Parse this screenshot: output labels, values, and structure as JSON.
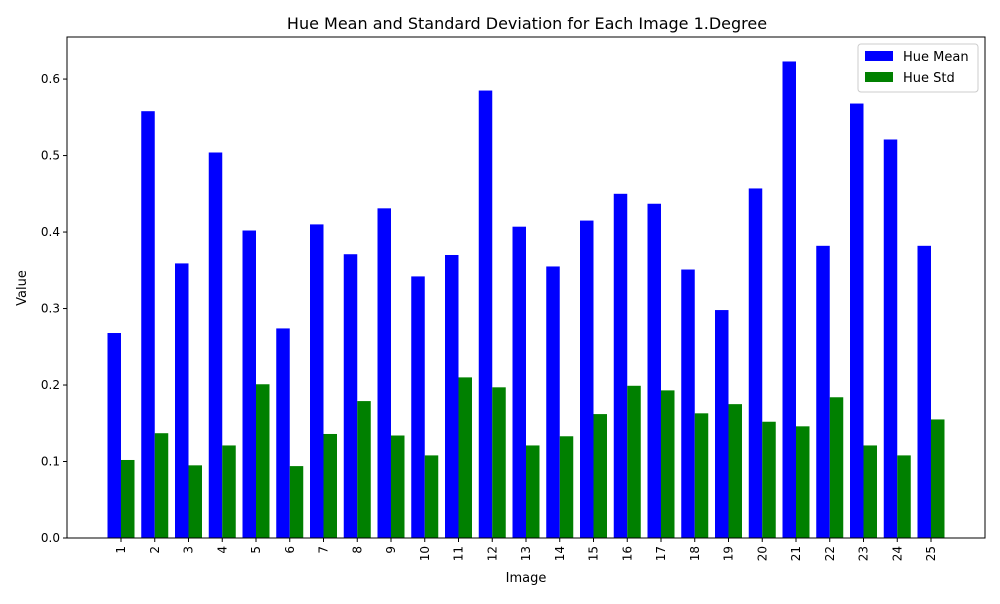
{
  "chart_data": {
    "type": "bar",
    "title": "Hue Mean and Standard Deviation for Each Image 1.Degree",
    "xlabel": "Image",
    "ylabel": "Value",
    "ylim": [
      0,
      0.655
    ],
    "yticks": [
      "0.0",
      "0.1",
      "0.2",
      "0.3",
      "0.4",
      "0.5",
      "0.6"
    ],
    "grid": false,
    "legend_position": "top-right",
    "categories": [
      "1",
      "2",
      "3",
      "4",
      "5",
      "6",
      "7",
      "8",
      "9",
      "10",
      "11",
      "12",
      "13",
      "14",
      "15",
      "16",
      "17",
      "18",
      "19",
      "20",
      "21",
      "22",
      "23",
      "24",
      "25"
    ],
    "series": [
      {
        "name": "Hue Mean",
        "color": "#0000ff",
        "values": [
          0.268,
          0.558,
          0.359,
          0.504,
          0.402,
          0.274,
          0.41,
          0.371,
          0.431,
          0.342,
          0.37,
          0.585,
          0.407,
          0.355,
          0.415,
          0.45,
          0.437,
          0.351,
          0.298,
          0.457,
          0.623,
          0.382,
          0.568,
          0.521,
          0.382
        ]
      },
      {
        "name": "Hue Std",
        "color": "#008000",
        "values": [
          0.102,
          0.137,
          0.095,
          0.121,
          0.201,
          0.094,
          0.136,
          0.179,
          0.134,
          0.108,
          0.21,
          0.197,
          0.121,
          0.133,
          0.162,
          0.199,
          0.193,
          0.163,
          0.175,
          0.152,
          0.146,
          0.184,
          0.121,
          0.108,
          0.155
        ]
      }
    ]
  }
}
